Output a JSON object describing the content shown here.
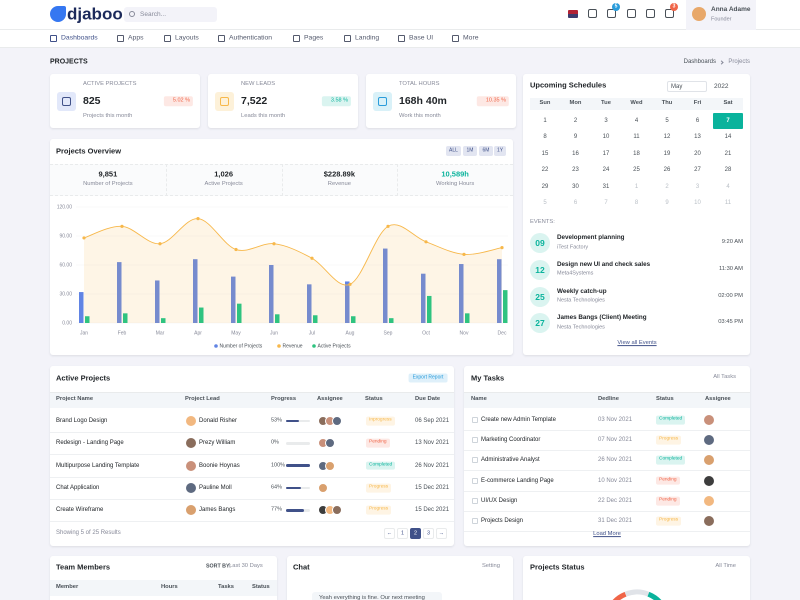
{
  "header": {
    "logo": "djaboo",
    "search": "Search...",
    "cart_count": "5",
    "alert_count": "3",
    "user": {
      "name": "Anna Adame",
      "role": "Founder"
    }
  },
  "nav": [
    "Dashboards",
    "Apps",
    "Layouts",
    "Authentication",
    "Pages",
    "Landing",
    "Base UI",
    "More"
  ],
  "page": {
    "title": "PROJECTS",
    "breadcrumb": [
      "Dashboards",
      "Projects"
    ]
  },
  "stats": [
    {
      "label": "ACTIVE PROJECTS",
      "value": "825",
      "change": "5.02 %",
      "trend": "down",
      "note": "Projects this month"
    },
    {
      "label": "NEW LEADS",
      "value": "7,522",
      "change": "3.58 %",
      "trend": "up",
      "note": "Leads this month"
    },
    {
      "label": "TOTAL HOURS",
      "value": "168h 40m",
      "change": "10.35 %",
      "trend": "down",
      "note": "Work this month"
    }
  ],
  "overview": {
    "title": "Projects Overview",
    "filters": [
      "ALL",
      "1M",
      "6M",
      "1Y"
    ],
    "summary": [
      {
        "value": "9,851",
        "label": "Number of Projects"
      },
      {
        "value": "1,026",
        "label": "Active Projects"
      },
      {
        "value": "$228.89k",
        "label": "Revenue"
      },
      {
        "value": "10,589h",
        "label": "Working Hours",
        "highlight": true
      }
    ],
    "chart_data": {
      "type": "bar-line",
      "categories": [
        "Jan",
        "Feb",
        "Mar",
        "Apr",
        "May",
        "Jun",
        "Jul",
        "Aug",
        "Sep",
        "Oct",
        "Nov",
        "Dec"
      ],
      "series": [
        {
          "name": "Number of Projects",
          "kind": "bar",
          "color": "#6184e4",
          "values": [
            32,
            63,
            44,
            66,
            48,
            60,
            40,
            43,
            77,
            51,
            61,
            66
          ]
        },
        {
          "name": "Revenue",
          "kind": "area",
          "color": "#f7b84b",
          "values": [
            88,
            100,
            82,
            108,
            76,
            82,
            67,
            40,
            100,
            84,
            71,
            78
          ]
        },
        {
          "name": "Active Projects",
          "kind": "bar",
          "color": "#2fc380",
          "values": [
            7,
            10,
            5,
            16,
            20,
            9,
            8,
            7,
            5,
            28,
            10,
            34
          ]
        }
      ],
      "ylim": [
        0,
        120
      ],
      "yticks": [
        {
          "value": 0,
          "label": "0.00"
        },
        {
          "value": 30,
          "label": "30.00"
        },
        {
          "value": 60,
          "label": "60.00"
        },
        {
          "value": 90,
          "label": "90.00"
        },
        {
          "value": 120,
          "label": "120.00"
        }
      ],
      "legend": "bottom"
    }
  },
  "schedule": {
    "title": "Upcoming Schedules",
    "month": "May",
    "year": "2022",
    "weekdays": [
      "Sun",
      "Mon",
      "Tue",
      "Wed",
      "Thu",
      "Fri",
      "Sat"
    ],
    "weeks": [
      [
        {
          "day": "1"
        },
        {
          "day": "2"
        },
        {
          "day": "3"
        },
        {
          "day": "4"
        },
        {
          "day": "5"
        },
        {
          "day": "6"
        },
        {
          "day": "7",
          "selected": true
        }
      ],
      [
        {
          "day": "8"
        },
        {
          "day": "9"
        },
        {
          "day": "10"
        },
        {
          "day": "11"
        },
        {
          "day": "12"
        },
        {
          "day": "13"
        },
        {
          "day": "14"
        }
      ],
      [
        {
          "day": "15"
        },
        {
          "day": "16"
        },
        {
          "day": "17"
        },
        {
          "day": "18"
        },
        {
          "day": "19"
        },
        {
          "day": "20"
        },
        {
          "day": "21"
        }
      ],
      [
        {
          "day": "22"
        },
        {
          "day": "23"
        },
        {
          "day": "24"
        },
        {
          "day": "25"
        },
        {
          "day": "26"
        },
        {
          "day": "27"
        },
        {
          "day": "28"
        }
      ],
      [
        {
          "day": "29"
        },
        {
          "day": "30"
        },
        {
          "day": "31"
        },
        {
          "day": "1",
          "muted": true
        },
        {
          "day": "2",
          "muted": true
        },
        {
          "day": "3",
          "muted": true
        },
        {
          "day": "4",
          "muted": true
        }
      ],
      [
        {
          "day": "5",
          "muted": true
        },
        {
          "day": "6",
          "muted": true
        },
        {
          "day": "7",
          "muted": true
        },
        {
          "day": "8",
          "muted": true
        },
        {
          "day": "9",
          "muted": true
        },
        {
          "day": "10",
          "muted": true
        },
        {
          "day": "11",
          "muted": true
        }
      ]
    ],
    "events_label": "EVENTS:",
    "events": [
      {
        "date": "09",
        "title": "Development planning",
        "org": "iTest Factory",
        "time": "9:20 AM"
      },
      {
        "date": "12",
        "title": "Design new UI and check sales",
        "org": "Meta4Systems",
        "time": "11:30 AM"
      },
      {
        "date": "25",
        "title": "Weekly catch-up",
        "org": "Nesta Technologies",
        "time": "02:00 PM"
      },
      {
        "date": "27",
        "title": "James Bangs (Client) Meeting",
        "org": "Nesta Technologies",
        "time": "03:45 PM"
      }
    ],
    "link": "View all Events"
  },
  "active_projects": {
    "title": "Active Projects",
    "button": "Export Report",
    "columns": [
      "Project Name",
      "Project Lead",
      "Progress",
      "Assignee",
      "Status",
      "Due Date"
    ],
    "progress_range": [
      0,
      100
    ],
    "rows": [
      {
        "name": "Brand Logo Design",
        "lead": "Donald Risher",
        "progress": 53,
        "progress_label": "53%",
        "assignees": 3,
        "status": "Inprogress",
        "tone": "warning",
        "due": "06 Sep 2021"
      },
      {
        "name": "Redesign - Landing Page",
        "lead": "Prezy William",
        "progress": 0,
        "progress_label": "0%",
        "assignees": 2,
        "status": "Pending",
        "tone": "danger",
        "due": "13 Nov 2021"
      },
      {
        "name": "Multipurpose Landing Template",
        "lead": "Boonie Hoynas",
        "progress": 100,
        "progress_label": "100%",
        "assignees": 2,
        "status": "Completed",
        "tone": "success",
        "due": "26 Nov 2021"
      },
      {
        "name": "Chat Application",
        "lead": "Pauline Moll",
        "progress": 64,
        "progress_label": "64%",
        "assignees": 1,
        "status": "Progress",
        "tone": "warning",
        "due": "15 Dec 2021"
      },
      {
        "name": "Create Wireframe",
        "lead": "James Bangs",
        "progress": 77,
        "progress_label": "77%",
        "assignees": 3,
        "status": "Progress",
        "tone": "warning",
        "due": "15 Dec 2021"
      }
    ],
    "footer": "Showing 5 of 25 Results",
    "pages": [
      "←",
      "1",
      "2",
      "3",
      "→"
    ],
    "active_page": 2
  },
  "tasks": {
    "title": "My Tasks",
    "filter": "All Tasks",
    "columns": [
      "Name",
      "Dedline",
      "Status",
      "Assignee"
    ],
    "rows": [
      {
        "name": "Create new Admin Template",
        "date": "03 Nov 2021",
        "status": "Completed",
        "tone": "success"
      },
      {
        "name": "Marketing Coordinator",
        "date": "07 Nov 2021",
        "status": "Progress",
        "tone": "warning"
      },
      {
        "name": "Administrative Analyst",
        "date": "26 Nov 2021",
        "status": "Completed",
        "tone": "success"
      },
      {
        "name": "E-commerce Landing Page",
        "date": "10 Nov 2021",
        "status": "Pending",
        "tone": "danger"
      },
      {
        "name": "UI/UX Design",
        "date": "22 Dec 2021",
        "status": "Pending",
        "tone": "danger"
      },
      {
        "name": "Projects Design",
        "date": "31 Dec 2021",
        "status": "Progress",
        "tone": "warning"
      }
    ],
    "link": "Load More"
  },
  "team": {
    "title": "Team Members",
    "sort_label": "SORT BY:",
    "sort": "Last 30 Days",
    "columns": [
      "Member",
      "Hours",
      "Tasks",
      "Status"
    ]
  },
  "chat": {
    "title": "Chat",
    "setting": "Setting",
    "message": "Yeah everything is fine. Our next meeting"
  },
  "status_card": {
    "title": "Projects Status",
    "filter": "All Time"
  }
}
